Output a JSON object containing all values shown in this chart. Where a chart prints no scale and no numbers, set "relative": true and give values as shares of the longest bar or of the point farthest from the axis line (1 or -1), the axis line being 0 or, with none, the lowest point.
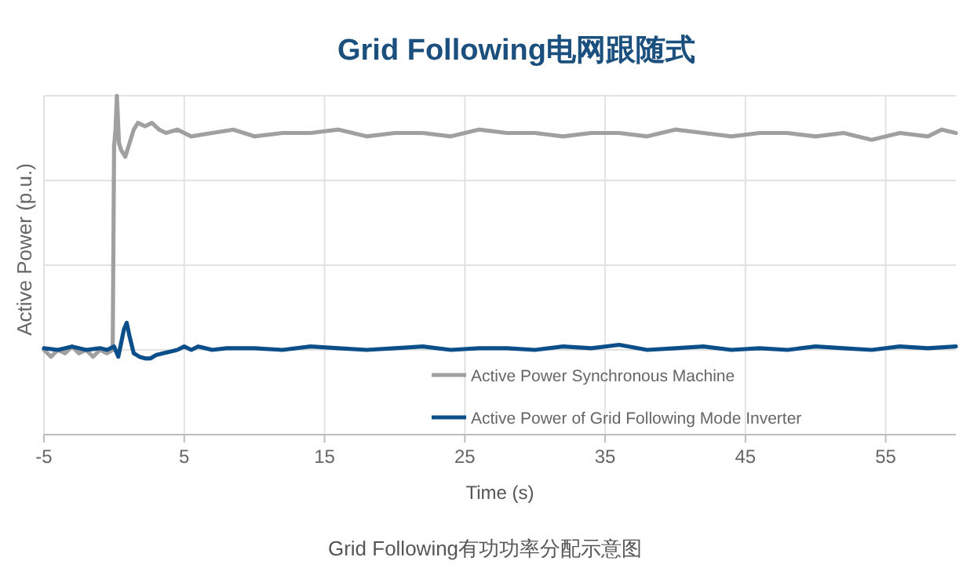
{
  "chart_data": {
    "type": "line",
    "title": "Grid Following电网跟随式",
    "xlabel": "Time (s)",
    "ylabel": "Active Power (p.u.)",
    "relative": true,
    "xlim": [
      -5,
      60
    ],
    "xticks": [
      -5,
      5,
      15,
      25,
      35,
      45,
      55
    ],
    "grid": true,
    "legend": "bottom",
    "annotations": [
      "Grid Following有功功率分配示意图"
    ],
    "series": [
      {
        "name": "Active Power Synchronous Machine",
        "color": "#a0a0a0",
        "x": [
          -5,
          -4.5,
          -4,
          -3.5,
          -3,
          -2.5,
          -2,
          -1.5,
          -1,
          -0.5,
          -0.1,
          0,
          0.1,
          0.2,
          0.35,
          0.5,
          0.8,
          1.1,
          1.4,
          1.7,
          2.2,
          2.7,
          3.2,
          3.7,
          4.5,
          5.5,
          7,
          8.5,
          10,
          12,
          14,
          16,
          18,
          20,
          22,
          24,
          26,
          28,
          30,
          32,
          34,
          36,
          38,
          40,
          42,
          44,
          46,
          48,
          50,
          52,
          54,
          56,
          58,
          59,
          60
        ],
        "values": [
          0.25,
          0.23,
          0.25,
          0.24,
          0.26,
          0.24,
          0.25,
          0.23,
          0.25,
          0.24,
          0.25,
          0.85,
          0.9,
          1.0,
          0.86,
          0.84,
          0.82,
          0.86,
          0.9,
          0.92,
          0.91,
          0.92,
          0.9,
          0.89,
          0.9,
          0.88,
          0.89,
          0.9,
          0.88,
          0.89,
          0.89,
          0.9,
          0.88,
          0.89,
          0.89,
          0.88,
          0.9,
          0.89,
          0.89,
          0.88,
          0.89,
          0.89,
          0.88,
          0.9,
          0.89,
          0.88,
          0.89,
          0.89,
          0.88,
          0.89,
          0.87,
          0.89,
          0.88,
          0.9,
          0.89
        ]
      },
      {
        "name": "Active Power of Grid Following Mode Inverter",
        "color": "#0b4f8a",
        "x": [
          -5,
          -4,
          -3,
          -2,
          -1,
          -0.5,
          0,
          0.3,
          0.5,
          0.7,
          0.9,
          1.1,
          1.4,
          1.8,
          2.2,
          2.6,
          3,
          3.5,
          4,
          4.5,
          5,
          5.5,
          6,
          7,
          8,
          10,
          12,
          14,
          16,
          18,
          20,
          22,
          24,
          26,
          28,
          30,
          32,
          34,
          36,
          38,
          40,
          42,
          44,
          46,
          48,
          50,
          52,
          54,
          56,
          58,
          60
        ],
        "values": [
          0.255,
          0.25,
          0.26,
          0.25,
          0.255,
          0.25,
          0.26,
          0.23,
          0.27,
          0.31,
          0.33,
          0.29,
          0.24,
          0.23,
          0.225,
          0.225,
          0.235,
          0.24,
          0.245,
          0.25,
          0.26,
          0.25,
          0.26,
          0.25,
          0.255,
          0.255,
          0.25,
          0.26,
          0.255,
          0.25,
          0.255,
          0.26,
          0.25,
          0.255,
          0.255,
          0.25,
          0.26,
          0.255,
          0.265,
          0.25,
          0.255,
          0.26,
          0.25,
          0.255,
          0.25,
          0.26,
          0.255,
          0.25,
          0.26,
          0.255,
          0.26
        ]
      }
    ]
  }
}
